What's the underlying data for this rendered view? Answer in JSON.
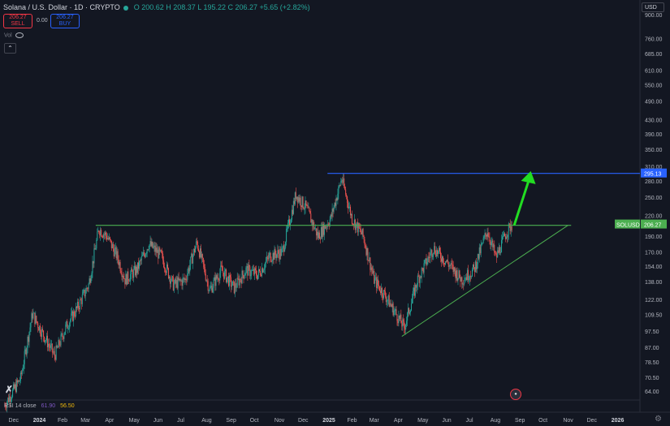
{
  "header": {
    "title": "Solana / U.S. Dollar · 1D · CRYPTO",
    "ohlc": "O 200.62 H 208.37 L 195.22 C 206.27 +5.65 (+2.82%)"
  },
  "trade": {
    "sell_price": "206.27",
    "sell_label": "SELL",
    "spread": "0.00",
    "buy_price": "206.27",
    "buy_label": "BUY"
  },
  "vol_label": "Vol",
  "currency": "USD",
  "rsi": {
    "label": "RSI 14 close",
    "value1": "61.90",
    "value2": "56.50"
  },
  "colors": {
    "up": "#26a69a",
    "down": "#ef5350",
    "bg": "#131722",
    "support": "#4caf50",
    "target": "#2962ff",
    "arrow": "#22dd22"
  },
  "chart_data": {
    "type": "candlestick",
    "ylim": [
      60,
      900
    ],
    "y_scale": "log",
    "y_ticks": [
      "900.00",
      "760.00",
      "685.00",
      "610.00",
      "550.00",
      "490.00",
      "430.00",
      "390.00",
      "350.00",
      "310.00",
      "280.00",
      "250.00",
      "220.00",
      "190.00",
      "170.00",
      "154.00",
      "138.00",
      "122.00",
      "109.50",
      "97.50",
      "87.00",
      "78.50",
      "70.50",
      "64.00"
    ],
    "x_ticks": [
      "Dec",
      "2024",
      "Feb",
      "Mar",
      "Apr",
      "May",
      "Jun",
      "Jul",
      "Aug",
      "Sep",
      "Oct",
      "Nov",
      "Dec",
      "2025",
      "Feb",
      "Mar",
      "Apr",
      "May",
      "Jun",
      "Jul",
      "Aug",
      "Sep",
      "Oct",
      "Nov",
      "Dec",
      "2026"
    ],
    "xlim": [
      "2023-11-14",
      "2026-01-31"
    ],
    "close_path": [
      [
        "2023-11-20",
        58
      ],
      [
        "2023-12-10",
        70
      ],
      [
        "2023-12-25",
        110
      ],
      [
        "2024-01-05",
        98
      ],
      [
        "2024-01-22",
        82
      ],
      [
        "2024-02-05",
        100
      ],
      [
        "2024-02-20",
        115
      ],
      [
        "2024-03-05",
        135
      ],
      [
        "2024-03-18",
        200
      ],
      [
        "2024-03-28",
        190
      ],
      [
        "2024-04-10",
        165
      ],
      [
        "2024-04-20",
        140
      ],
      [
        "2024-05-05",
        150
      ],
      [
        "2024-05-20",
        180
      ],
      [
        "2024-06-05",
        165
      ],
      [
        "2024-06-20",
        135
      ],
      [
        "2024-07-05",
        140
      ],
      [
        "2024-07-20",
        182
      ],
      [
        "2024-08-05",
        130
      ],
      [
        "2024-08-20",
        150
      ],
      [
        "2024-09-05",
        132
      ],
      [
        "2024-09-20",
        150
      ],
      [
        "2024-10-05",
        145
      ],
      [
        "2024-10-20",
        165
      ],
      [
        "2024-11-05",
        170
      ],
      [
        "2024-11-22",
        255
      ],
      [
        "2024-12-05",
        232
      ],
      [
        "2024-12-20",
        190
      ],
      [
        "2025-01-05",
        215
      ],
      [
        "2025-01-19",
        285
      ],
      [
        "2025-02-01",
        215
      ],
      [
        "2025-02-15",
        190
      ],
      [
        "2025-03-01",
        140
      ],
      [
        "2025-03-15",
        125
      ],
      [
        "2025-04-08",
        100
      ],
      [
        "2025-04-25",
        140
      ],
      [
        "2025-05-15",
        175
      ],
      [
        "2025-06-01",
        158
      ],
      [
        "2025-06-20",
        140
      ],
      [
        "2025-07-05",
        150
      ],
      [
        "2025-07-22",
        198
      ],
      [
        "2025-08-02",
        163
      ],
      [
        "2025-08-15",
        195
      ],
      [
        "2025-08-22",
        206.27
      ]
    ],
    "lines": [
      {
        "kind": "horizontal",
        "value": 205,
        "from": "2024-03-14",
        "to": "2025-11-05"
      },
      {
        "kind": "horizontal",
        "value": 295.13,
        "from": "2025-01-01",
        "to": "2026-01-31"
      },
      {
        "kind": "trend",
        "from": [
          "2025-04-05",
          94
        ],
        "to": [
          "2025-11-01",
          205
        ]
      },
      {
        "kind": "arrow",
        "from": [
          "2025-08-25",
          205
        ],
        "to": [
          "2025-09-15",
          300
        ]
      }
    ],
    "price_labels": [
      {
        "text": "295.13",
        "value": 295.13
      },
      {
        "text": "206.27",
        "value": 206.27,
        "symbol": "SOLUSD"
      }
    ]
  }
}
